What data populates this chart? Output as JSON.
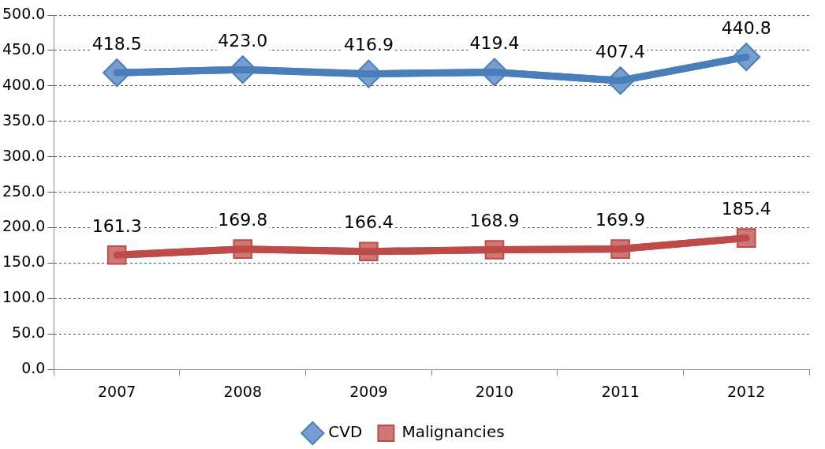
{
  "chart_data": {
    "type": "line",
    "categories": [
      "2007",
      "2008",
      "2009",
      "2010",
      "2011",
      "2012"
    ],
    "series": [
      {
        "name": "CVD",
        "color": "#4a7ebb",
        "marker": "diamond",
        "values": [
          418.5,
          423.0,
          416.9,
          419.4,
          407.4,
          440.8
        ],
        "value_labels": [
          "418.5",
          "423.0",
          "416.9",
          "419.4",
          "407.4",
          "440.8"
        ]
      },
      {
        "name": "Malignancies",
        "color": "#be4b48",
        "marker": "square",
        "values": [
          161.3,
          169.8,
          166.4,
          168.9,
          169.9,
          185.4
        ],
        "value_labels": [
          "161.3",
          "169.8",
          "166.4",
          "168.9",
          "169.9",
          "185.4"
        ]
      }
    ],
    "ylim": [
      0,
      500
    ],
    "yticks": [
      {
        "value": 0,
        "label": "0.0"
      },
      {
        "value": 50,
        "label": "50.0"
      },
      {
        "value": 100,
        "label": "100.0"
      },
      {
        "value": 150,
        "label": "150.0"
      },
      {
        "value": 200,
        "label": "200.0"
      },
      {
        "value": 250,
        "label": "250.0"
      },
      {
        "value": 300,
        "label": "300.0"
      },
      {
        "value": 350,
        "label": "350.0"
      },
      {
        "value": 400,
        "label": "400.0"
      },
      {
        "value": 450,
        "label": "450.0"
      },
      {
        "value": 500,
        "label": "500.0"
      }
    ],
    "grid": "y",
    "legend": "bottom",
    "line_style": "solid"
  }
}
